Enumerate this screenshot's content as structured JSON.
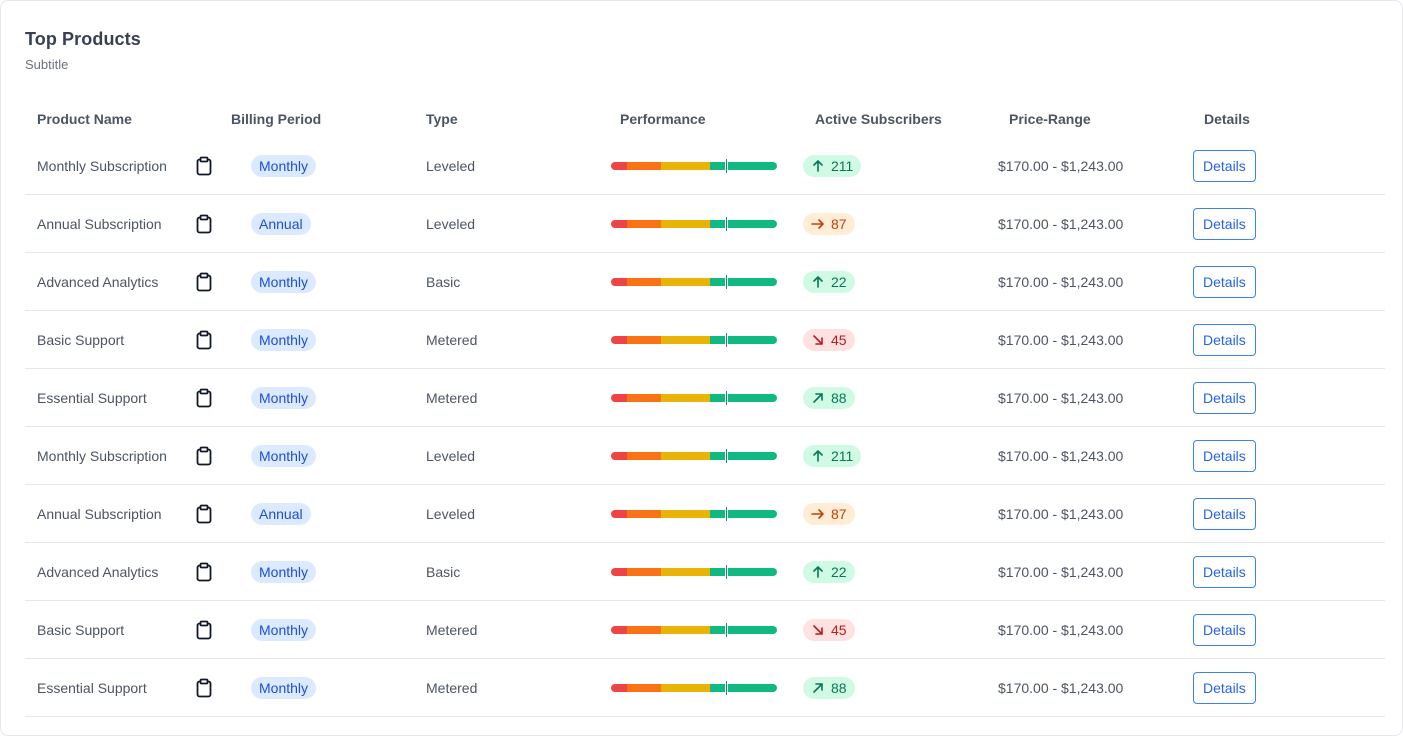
{
  "card": {
    "title": "Top Products",
    "subtitle": "Subtitle"
  },
  "columns": [
    "Product Name",
    "Billing Period",
    "Type",
    "Performance",
    "Active Subscribers",
    "Price-Range",
    "Details"
  ],
  "colors": {
    "perf_red": "#ef4444",
    "perf_orange": "#f97316",
    "perf_yellow": "#eab308",
    "perf_green": "#10b981",
    "trend_up_bg": "#d1fae5",
    "trend_up_fg": "#047857",
    "trend_right_bg": "#ffedd5",
    "trend_right_fg": "#c2410c",
    "trend_down_bg": "#fee2e2",
    "trend_down_fg": "#b91c1c",
    "pill_bg": "#dbeafe",
    "pill_fg": "#1d4ed8"
  },
  "rows": [
    {
      "name": "Monthly Subscription",
      "billing": "Monthly",
      "type": "Leveled",
      "trend": "up",
      "subs": "211",
      "price": "$170.00 - $1,243.00",
      "details": "Details",
      "icon": "clipboard-icon"
    },
    {
      "name": "Annual Subscription",
      "billing": "Annual",
      "type": "Leveled",
      "trend": "right",
      "subs": "87",
      "price": "$170.00 - $1,243.00",
      "details": "Details",
      "icon": "clipboard-icon"
    },
    {
      "name": "Advanced Analytics",
      "billing": "Monthly",
      "type": "Basic",
      "trend": "up",
      "subs": "22",
      "price": "$170.00 - $1,243.00",
      "details": "Details",
      "icon": "clipboard-icon"
    },
    {
      "name": "Basic Support",
      "billing": "Monthly",
      "type": "Metered",
      "trend": "down-right",
      "subs": "45",
      "price": "$170.00 - $1,243.00",
      "details": "Details",
      "icon": "clipboard-icon"
    },
    {
      "name": "Essential Support",
      "billing": "Monthly",
      "type": "Metered",
      "trend": "up-right",
      "subs": "88",
      "price": "$170.00 - $1,243.00",
      "details": "Details",
      "icon": "clipboard-icon"
    },
    {
      "name": "Monthly Subscription",
      "billing": "Monthly",
      "type": "Leveled",
      "trend": "up",
      "subs": "211",
      "price": "$170.00 - $1,243.00",
      "details": "Details",
      "icon": "clipboard-icon"
    },
    {
      "name": "Annual Subscription",
      "billing": "Annual",
      "type": "Leveled",
      "trend": "right",
      "subs": "87",
      "price": "$170.00 - $1,243.00",
      "details": "Details",
      "icon": "clipboard-icon"
    },
    {
      "name": "Advanced Analytics",
      "billing": "Monthly",
      "type": "Basic",
      "trend": "up",
      "subs": "22",
      "price": "$170.00 - $1,243.00",
      "details": "Details",
      "icon": "clipboard-icon"
    },
    {
      "name": "Basic Support",
      "billing": "Monthly",
      "type": "Metered",
      "trend": "down-right",
      "subs": "45",
      "price": "$170.00 - $1,243.00",
      "details": "Details",
      "icon": "clipboard-icon"
    },
    {
      "name": "Essential Support",
      "billing": "Monthly",
      "type": "Metered",
      "trend": "up-right",
      "subs": "88",
      "price": "$170.00 - $1,243.00",
      "details": "Details",
      "icon": "clipboard-icon"
    }
  ]
}
